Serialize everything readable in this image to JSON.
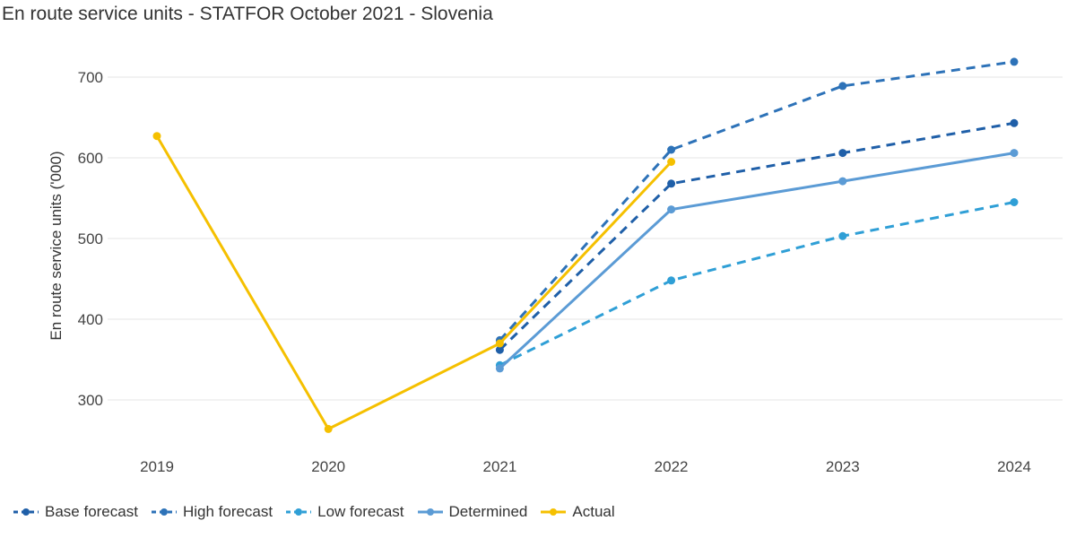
{
  "title": "En route service units - STATFOR October 2021 - Slovenia",
  "chart_data": {
    "type": "line",
    "title": "En route service units - STATFOR October 2021 - Slovenia",
    "xlabel": "",
    "ylabel": "En route service units ('000)",
    "x": [
      "2019",
      "2020",
      "2021",
      "2022",
      "2023",
      "2024"
    ],
    "yticks": [
      300,
      400,
      500,
      600,
      700
    ],
    "ylim": [
      230,
      740
    ],
    "grid": true,
    "legend_position": "bottom-left",
    "series": [
      {
        "name": "Base forecast",
        "color": "#1f5fa8",
        "dash": true,
        "points": [
          [
            2021,
            362
          ],
          [
            2022,
            568
          ],
          [
            2023,
            606
          ],
          [
            2024,
            643
          ]
        ]
      },
      {
        "name": "High forecast",
        "color": "#2d72b8",
        "dash": true,
        "points": [
          [
            2021,
            374
          ],
          [
            2022,
            610
          ],
          [
            2023,
            689
          ],
          [
            2024,
            719
          ]
        ]
      },
      {
        "name": "Low forecast",
        "color": "#2f9fd6",
        "dash": true,
        "points": [
          [
            2021,
            343
          ],
          [
            2022,
            448
          ],
          [
            2023,
            503
          ],
          [
            2024,
            545
          ]
        ]
      },
      {
        "name": "Determined",
        "color": "#5b9bd5",
        "dash": false,
        "points": [
          [
            2021,
            339
          ],
          [
            2022,
            536
          ],
          [
            2023,
            571
          ],
          [
            2024,
            606
          ]
        ]
      },
      {
        "name": "Actual",
        "color": "#f5c000",
        "dash": false,
        "points": [
          [
            2019,
            627
          ],
          [
            2020,
            264
          ],
          [
            2021,
            370
          ],
          [
            2022,
            595
          ]
        ]
      }
    ]
  }
}
